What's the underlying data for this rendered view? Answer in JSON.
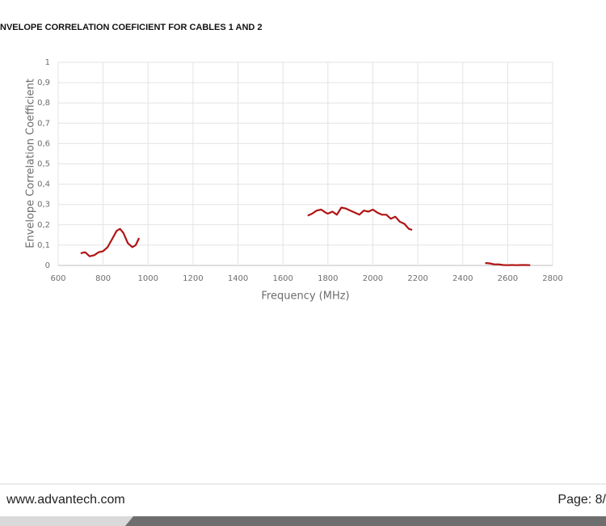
{
  "header": {
    "title": "NVELOPE CORRELATION COEFICIENT FOR CABLES 1 AND 2"
  },
  "chart_data": {
    "type": "line",
    "x_label": "Frequency (MHz)",
    "y_label": "Envelope Correlation Coefficient",
    "x": [
      700,
      720,
      740,
      760,
      780,
      800,
      820,
      840,
      860,
      875,
      890,
      910,
      930,
      945,
      960,
      null,
      1710,
      1730,
      1750,
      1770,
      1790,
      1800,
      1820,
      1840,
      1860,
      1880,
      1900,
      1920,
      1940,
      1960,
      1980,
      2000,
      2020,
      2040,
      2060,
      2080,
      2100,
      2120,
      2140,
      2160,
      2175,
      null,
      2500,
      2520,
      2540,
      2560,
      2580,
      2600,
      2620,
      2640,
      2660,
      2680,
      2700
    ],
    "series": [
      {
        "color": "#b01414",
        "values": [
          0.06,
          0.065,
          0.045,
          0.05,
          0.065,
          0.07,
          0.09,
          0.13,
          0.17,
          0.18,
          0.16,
          0.11,
          0.09,
          0.1,
          0.135,
          null,
          0.245,
          0.255,
          0.27,
          0.275,
          0.26,
          0.255,
          0.265,
          0.25,
          0.285,
          0.28,
          0.27,
          0.26,
          0.25,
          0.27,
          0.265,
          0.275,
          0.26,
          0.25,
          0.25,
          0.23,
          0.24,
          0.215,
          0.205,
          0.18,
          0.175,
          null,
          0.012,
          0.01,
          0.005,
          0.005,
          0.002,
          0.001,
          0.002,
          0.001,
          0.002,
          0.002,
          0.001
        ]
      }
    ],
    "xlim": [
      600,
      2800
    ],
    "xticks": [
      600,
      800,
      1000,
      1200,
      1400,
      1600,
      1800,
      2000,
      2200,
      2400,
      2600,
      2800
    ],
    "ylim": [
      0,
      1
    ],
    "yticks": [
      0,
      {
        "value": 0.1,
        "label": "0,1"
      },
      {
        "value": 0.2,
        "label": "0,2"
      },
      {
        "value": 0.3,
        "label": "0,3"
      },
      {
        "value": 0.4,
        "label": "0,4"
      },
      {
        "value": 0.5,
        "label": "0,5"
      },
      {
        "value": 0.6,
        "label": "0,6"
      },
      {
        "value": 0.7,
        "label": "0,7"
      },
      {
        "value": 0.8,
        "label": "0,8"
      },
      {
        "value": 0.9,
        "label": "0,9"
      },
      1
    ],
    "grid": true
  },
  "footer": {
    "website": "www.advantech.com",
    "page": "Page: 8/"
  }
}
